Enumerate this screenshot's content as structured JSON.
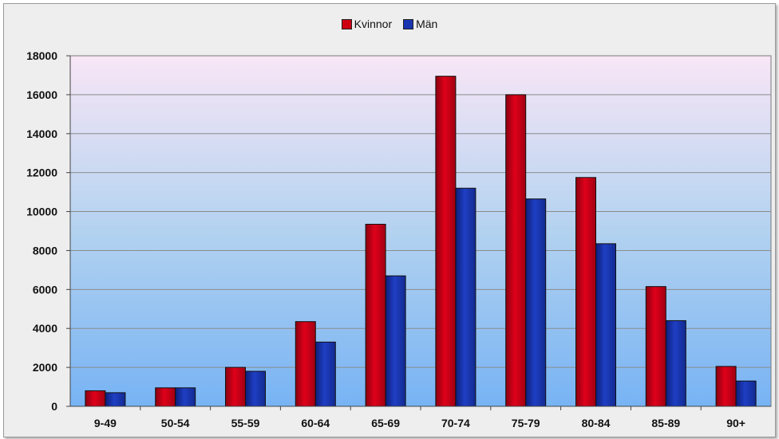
{
  "chart_data": {
    "type": "bar",
    "categories": [
      "9-49",
      "50-54",
      "55-59",
      "60-64",
      "65-69",
      "70-74",
      "75-79",
      "80-84",
      "85-89",
      "90+"
    ],
    "series": [
      {
        "name": "Kvinnor",
        "color": "#cc0011",
        "values": [
          800,
          950,
          2000,
          4350,
          9350,
          16950,
          16000,
          11750,
          6150,
          2050
        ]
      },
      {
        "name": "Män",
        "color": "#1a35b0",
        "values": [
          700,
          950,
          1800,
          3300,
          6700,
          11200,
          10650,
          8350,
          4400,
          1300
        ]
      }
    ],
    "ylim": [
      0,
      18000
    ],
    "yticks": [
      "0",
      "2000",
      "4000",
      "6000",
      "8000",
      "10000",
      "12000",
      "14000",
      "16000",
      "18000"
    ],
    "grid": true,
    "legend_position": "top-center"
  }
}
